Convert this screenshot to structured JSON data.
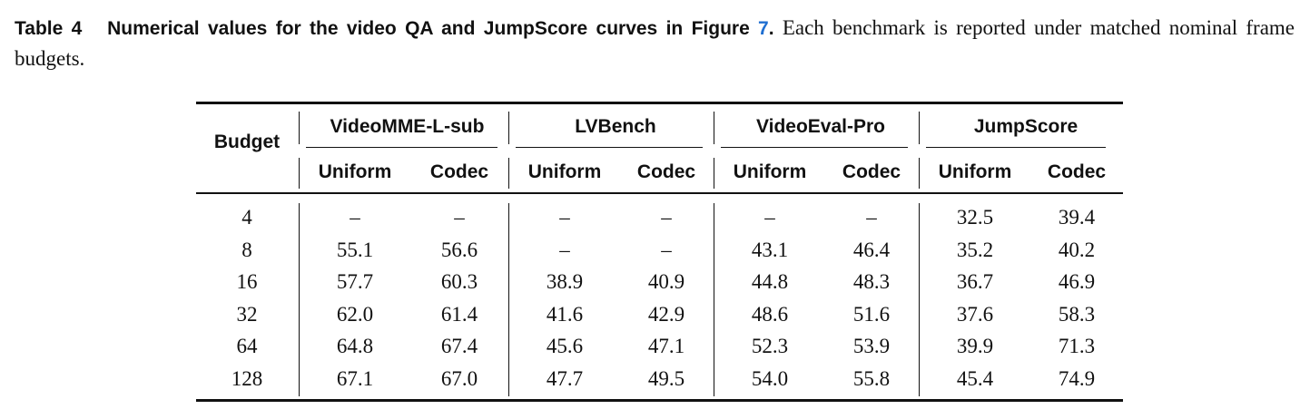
{
  "caption": {
    "label": "Table 4",
    "title": "Numerical values for the video QA and JumpScore curves in Figure",
    "figure_ref": "7",
    "title_end": ".",
    "text": "Each benchmark is reported under matched nominal frame budgets."
  },
  "table": {
    "corner": "Budget",
    "groups": [
      {
        "name": "VideoMME-L-sub",
        "columns": [
          "Uniform",
          "Codec"
        ]
      },
      {
        "name": "LVBench",
        "columns": [
          "Uniform",
          "Codec"
        ]
      },
      {
        "name": "VideoEval-Pro",
        "columns": [
          "Uniform",
          "Codec"
        ]
      },
      {
        "name": "JumpScore",
        "columns": [
          "Uniform",
          "Codec"
        ]
      }
    ],
    "rows": [
      [
        "4",
        "–",
        "–",
        "–",
        "–",
        "–",
        "–",
        "32.5",
        "39.4"
      ],
      [
        "8",
        "55.1",
        "56.6",
        "–",
        "–",
        "43.1",
        "46.4",
        "35.2",
        "40.2"
      ],
      [
        "16",
        "57.7",
        "60.3",
        "38.9",
        "40.9",
        "44.8",
        "48.3",
        "36.7",
        "46.9"
      ],
      [
        "32",
        "62.0",
        "61.4",
        "41.6",
        "42.9",
        "48.6",
        "51.6",
        "37.6",
        "58.3"
      ],
      [
        "64",
        "64.8",
        "67.4",
        "45.6",
        "47.1",
        "52.3",
        "53.9",
        "39.9",
        "71.3"
      ],
      [
        "128",
        "67.1",
        "67.0",
        "47.7",
        "49.5",
        "54.0",
        "55.8",
        "45.4",
        "74.9"
      ]
    ]
  }
}
